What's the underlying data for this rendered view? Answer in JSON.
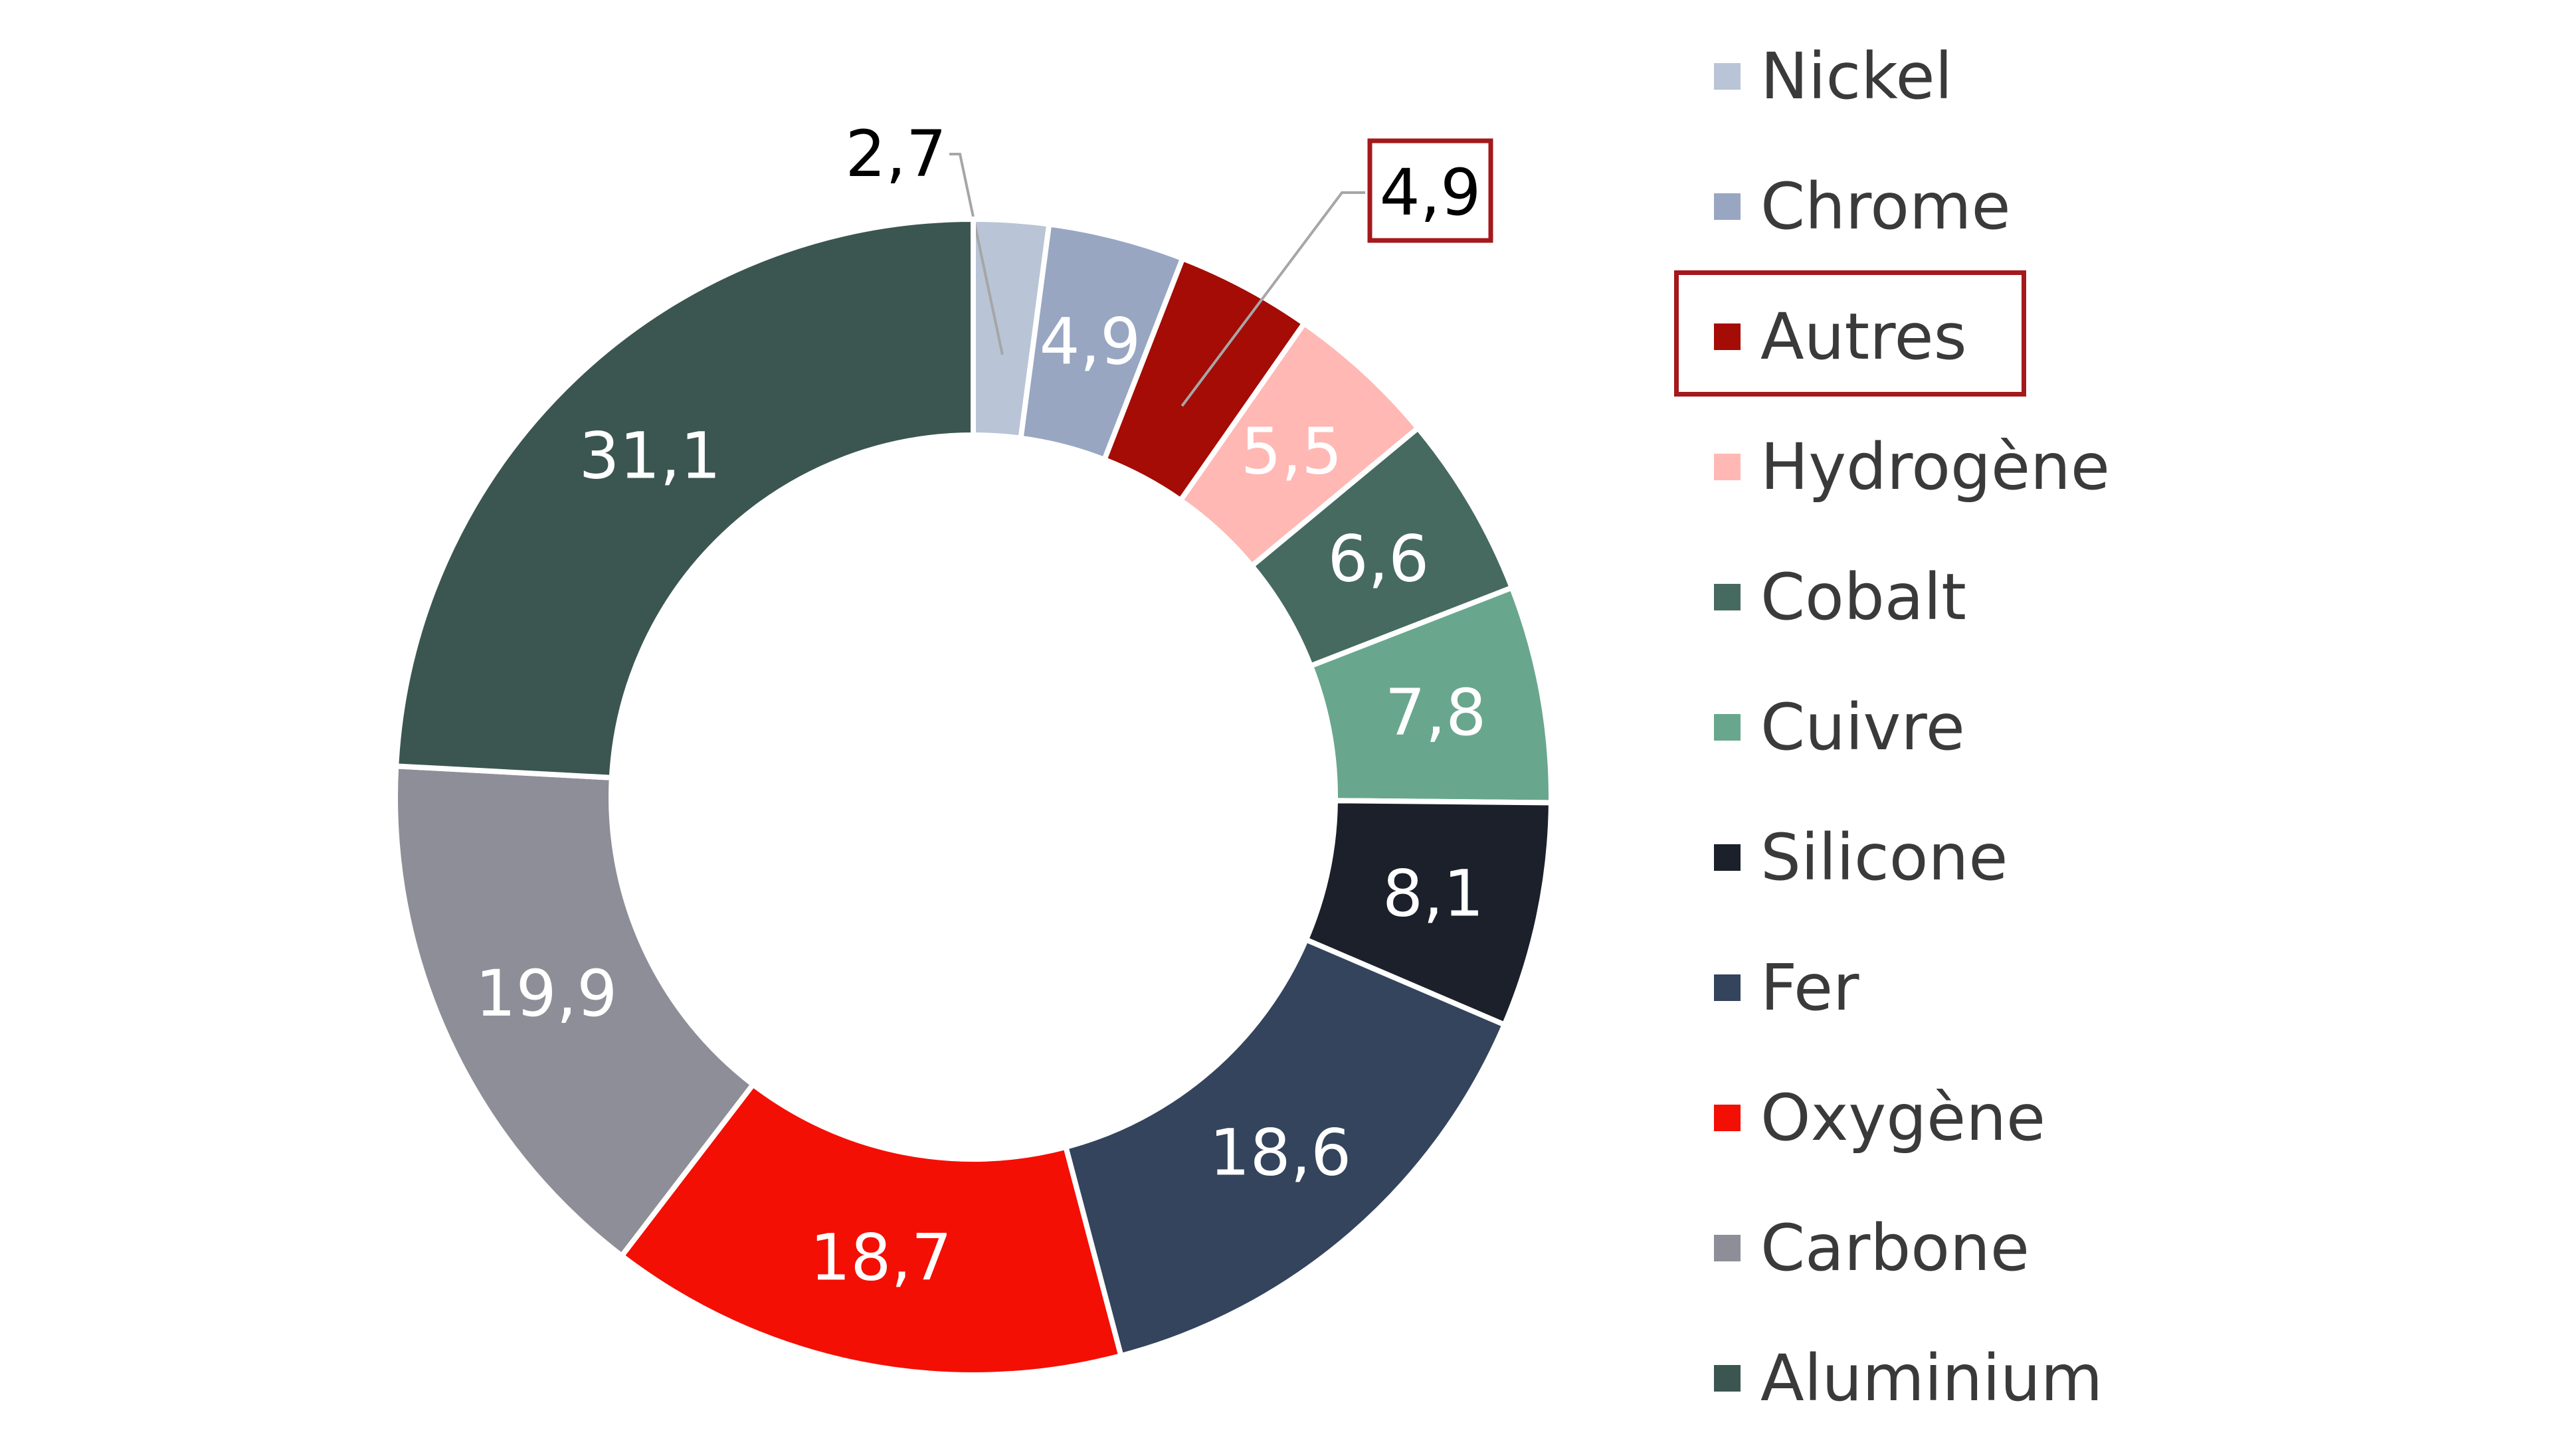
{
  "chart_data": {
    "type": "pie",
    "subtype": "donut",
    "title": "",
    "slices": [
      {
        "label": "Nickel",
        "value": 2.7,
        "display": "2,7",
        "color": "#b9c4d6",
        "label_color": "#000000",
        "label_position": "outside-leader"
      },
      {
        "label": "Chrome",
        "value": 4.9,
        "display": "4,9",
        "color": "#98a6c2",
        "label_color": "#ffffff",
        "label_position": "inside"
      },
      {
        "label": "Autres",
        "value": 4.9,
        "display": "4,9",
        "color": "#a40c05",
        "label_color": "#000000",
        "label_position": "outside-leader-boxed"
      },
      {
        "label": "Hydrogène",
        "value": 5.5,
        "display": "5,5",
        "color": "#ffb8b4",
        "label_color": "#ffffff",
        "label_position": "inside"
      },
      {
        "label": "Cobalt",
        "value": 6.6,
        "display": "6,6",
        "color": "#466a60",
        "label_color": "#ffffff",
        "label_position": "inside"
      },
      {
        "label": "Cuivre",
        "value": 7.8,
        "display": "7,8",
        "color": "#68a78d",
        "label_color": "#ffffff",
        "label_position": "inside"
      },
      {
        "label": "Silicone",
        "value": 8.1,
        "display": "8,1",
        "color": "#1b202b",
        "label_color": "#ffffff",
        "label_position": "inside"
      },
      {
        "label": "Fer",
        "value": 18.6,
        "display": "18,6",
        "color": "#33445c",
        "label_color": "#ffffff",
        "label_position": "inside"
      },
      {
        "label": "Oxygène",
        "value": 18.7,
        "display": "18,7",
        "color": "#f30f04",
        "label_color": "#ffffff",
        "label_position": "inside"
      },
      {
        "label": "Carbone",
        "value": 19.9,
        "display": "19,9",
        "color": "#8e8e98",
        "label_color": "#ffffff",
        "label_position": "inside"
      },
      {
        "label": "Aluminium",
        "value": 31.1,
        "display": "31,1",
        "color": "#3b5650",
        "label_color": "#ffffff",
        "label_position": "inside"
      }
    ],
    "highlight": {
      "label": "Autres",
      "outline_color": "#a4191b"
    },
    "legend_placement": "right"
  }
}
